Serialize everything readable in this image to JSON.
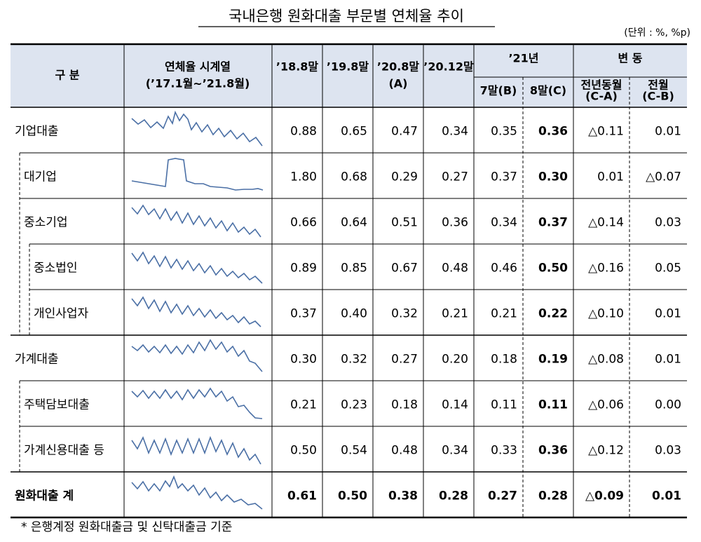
{
  "title": "국내은행 원화대출 부문별 연체율 추이",
  "unit": "(단위 : %, %p)",
  "header": {
    "category": "구 분",
    "series": "연체율 시계열",
    "series_range": "(’17.1월~’21.8월)",
    "c1": "’18.8말",
    "c2": "’19.8말",
    "c3": "’20.8말",
    "c3_sub": "(A)",
    "c4": "’20.12말",
    "year21": "’21년",
    "m7": "7말(B)",
    "m8": "8말(C)",
    "change": "변 동",
    "yoy": "전년동월",
    "yoy_sub": "(C-A)",
    "mom": "전월",
    "mom_sub": "(C-B)"
  },
  "rows": [
    {
      "label": "기업대출",
      "values": [
        "0.88",
        "0.65",
        "0.47",
        "0.34",
        "0.35",
        "0.36",
        "△0.11",
        "0.01"
      ]
    },
    {
      "label": "대기업",
      "values": [
        "1.80",
        "0.68",
        "0.29",
        "0.27",
        "0.37",
        "0.30",
        "0.01",
        "△0.07"
      ]
    },
    {
      "label": "중소기업",
      "values": [
        "0.66",
        "0.64",
        "0.51",
        "0.36",
        "0.34",
        "0.37",
        "△0.14",
        "0.03"
      ]
    },
    {
      "label": "중소법인",
      "values": [
        "0.89",
        "0.85",
        "0.67",
        "0.48",
        "0.46",
        "0.50",
        "△0.16",
        "0.05"
      ]
    },
    {
      "label": "개인사업자",
      "values": [
        "0.37",
        "0.40",
        "0.32",
        "0.21",
        "0.21",
        "0.22",
        "△0.10",
        "0.01"
      ]
    },
    {
      "label": "가계대출",
      "values": [
        "0.30",
        "0.32",
        "0.27",
        "0.20",
        "0.18",
        "0.19",
        "△0.08",
        "0.01"
      ]
    },
    {
      "label": "주택담보대출",
      "values": [
        "0.21",
        "0.23",
        "0.18",
        "0.14",
        "0.11",
        "0.11",
        "△0.06",
        "0.00"
      ]
    },
    {
      "label": "가계신용대출 등",
      "values": [
        "0.50",
        "0.54",
        "0.48",
        "0.34",
        "0.33",
        "0.36",
        "△0.12",
        "0.03"
      ]
    },
    {
      "label": "원화대출 계",
      "values": [
        "0.61",
        "0.50",
        "0.38",
        "0.28",
        "0.27",
        "0.28",
        "△0.09",
        "0.01"
      ]
    }
  ],
  "footnote": "* 은행계정 원화대출금 및 신탁대출금 기준"
}
